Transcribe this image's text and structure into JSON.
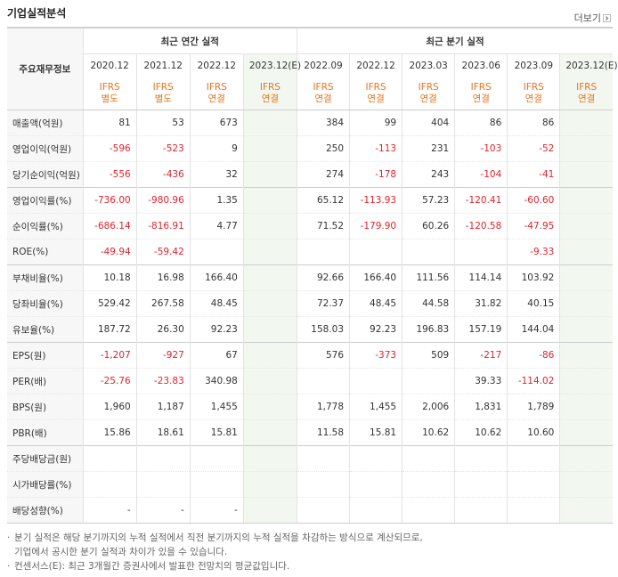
{
  "header": {
    "title": "기업실적분석",
    "more": "더보기"
  },
  "table": {
    "corner": "주요재무정보",
    "groups": [
      {
        "label": "최근 연간 실적",
        "span": 4
      },
      {
        "label": "최근 분기 실적",
        "span": 6
      }
    ],
    "periods": [
      "2020.12",
      "2021.12",
      "2022.12",
      "2023.12(E)",
      "2022.09",
      "2022.12",
      "2023.03",
      "2023.06",
      "2023.09",
      "2023.12(E)"
    ],
    "estimate": [
      false,
      false,
      false,
      true,
      false,
      false,
      false,
      false,
      false,
      true
    ],
    "standards": [
      [
        "IFRS",
        "별도"
      ],
      [
        "IFRS",
        "별도"
      ],
      [
        "IFRS",
        "연결"
      ],
      [
        "IFRS",
        "연결"
      ],
      [
        "IFRS",
        "연결"
      ],
      [
        "IFRS",
        "연결"
      ],
      [
        "IFRS",
        "연결"
      ],
      [
        "IFRS",
        "연결"
      ],
      [
        "IFRS",
        "연결"
      ],
      [
        "IFRS",
        "연결"
      ]
    ],
    "row_groups": [
      [
        {
          "label": "매출액(억원)",
          "cells": [
            "81",
            "53",
            "673",
            null,
            "384",
            "99",
            "404",
            "86",
            "86",
            null
          ]
        },
        {
          "label": "영업이익(억원)",
          "cells": [
            "-596",
            "-523",
            "9",
            null,
            "250",
            "-113",
            "231",
            "-103",
            "-52",
            null
          ]
        },
        {
          "label": "당기순이익(억원)",
          "cells": [
            "-556",
            "-436",
            "32",
            null,
            "274",
            "-178",
            "243",
            "-104",
            "-41",
            null
          ]
        }
      ],
      [
        {
          "label": "영업이익률(%)",
          "cells": [
            "-736.00",
            "-980.96",
            "1.35",
            null,
            "65.12",
            "-113.93",
            "57.23",
            "-120.41",
            "-60.60",
            null
          ]
        },
        {
          "label": "순이익률(%)",
          "cells": [
            "-686.14",
            "-816.91",
            "4.77",
            null,
            "71.52",
            "-179.90",
            "60.26",
            "-120.58",
            "-47.95",
            null
          ]
        },
        {
          "label": "ROE(%)",
          "cells": [
            "-49.94",
            "-59.42",
            null,
            null,
            null,
            null,
            null,
            null,
            "-9.33",
            null
          ]
        }
      ],
      [
        {
          "label": "부채비율(%)",
          "cells": [
            "10.18",
            "16.98",
            "166.40",
            null,
            "92.66",
            "166.40",
            "111.56",
            "114.14",
            "103.92",
            null
          ]
        },
        {
          "label": "당좌비율(%)",
          "cells": [
            "529.42",
            "267.58",
            "48.45",
            null,
            "72.37",
            "48.45",
            "44.58",
            "31.82",
            "40.15",
            null
          ]
        },
        {
          "label": "유보율(%)",
          "cells": [
            "187.72",
            "26.30",
            "92.23",
            null,
            "158.03",
            "92.23",
            "196.83",
            "157.19",
            "144.04",
            null
          ]
        }
      ],
      [
        {
          "label": "EPS(원)",
          "cells": [
            "-1,207",
            "-927",
            "67",
            null,
            "576",
            "-373",
            "509",
            "-217",
            "-86",
            null
          ]
        },
        {
          "label": "PER(배)",
          "cells": [
            "-25.76",
            "-23.83",
            "340.98",
            null,
            null,
            null,
            null,
            "39.33",
            "-114.02",
            null
          ]
        },
        {
          "label": "BPS(원)",
          "cells": [
            "1,960",
            "1,187",
            "1,455",
            null,
            "1,778",
            "1,455",
            "2,006",
            "1,831",
            "1,789",
            null
          ]
        },
        {
          "label": "PBR(배)",
          "cells": [
            "15.86",
            "18.61",
            "15.81",
            null,
            "11.58",
            "15.81",
            "10.62",
            "10.62",
            "10.60",
            null
          ]
        }
      ],
      [
        {
          "label": "주당배당금(원)",
          "cells": [
            null,
            null,
            null,
            null,
            null,
            null,
            null,
            null,
            null,
            null
          ]
        },
        {
          "label": "시가배당률(%)",
          "cells": [
            null,
            null,
            null,
            null,
            null,
            null,
            null,
            null,
            null,
            null
          ]
        },
        {
          "label": "배당성향(%)",
          "cells": [
            "-",
            "-",
            "-",
            null,
            null,
            null,
            null,
            null,
            null,
            null
          ]
        }
      ]
    ]
  },
  "notes": [
    [
      "분기 실적은 해당 분기까지의 누적 실적에서 직전 분기까지의 누적 실적을 차감하는 방식으로 계산되므로,",
      "기업에서 공시한 분기 실적과 차이가 있을 수 있습니다."
    ],
    [
      "컨센서스(E): 최근 3개월간 증권사에서 발표한 전망치의 평균값입니다."
    ]
  ]
}
